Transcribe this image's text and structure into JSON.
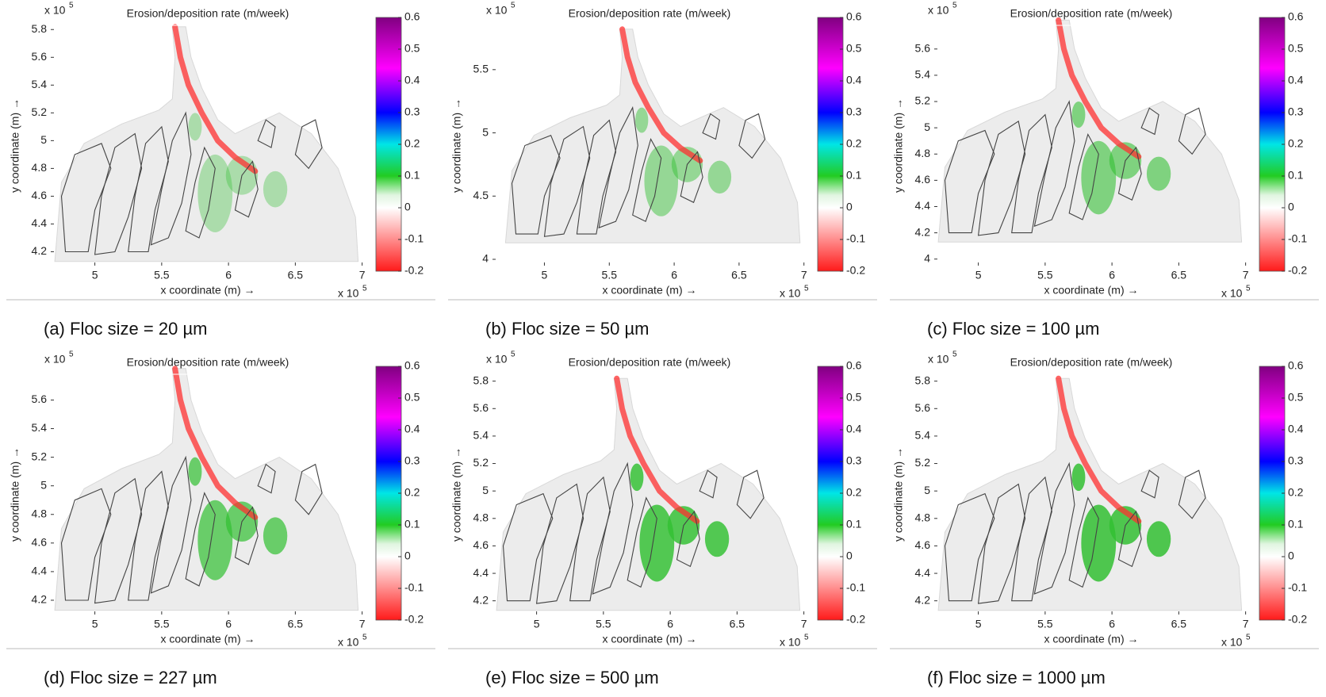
{
  "chart_data": [
    {
      "type": "map",
      "title": "Erosion/deposition rate (m/week)",
      "xlabel": "x coordinate (m) →",
      "ylabel": "y coordinate (m) →",
      "axis_multiplier": "x 10",
      "axis_exponent": "5",
      "xlim": [
        4.67,
        7.02
      ],
      "ylim": [
        4.1,
        5.83
      ],
      "xticks": [
        5,
        5.5,
        6,
        6.5,
        7
      ],
      "yticks": [
        4.2,
        4.4,
        4.6,
        4.8,
        5,
        5.2,
        5.4,
        5.6,
        5.8
      ],
      "colorbar": {
        "lim": [
          -0.2,
          0.6
        ],
        "ticks": [
          -0.2,
          -0.1,
          0,
          0.1,
          0.2,
          0.3,
          0.4,
          0.5,
          0.6
        ]
      },
      "caption": "(a)  Floc size = 20 µm"
    },
    {
      "type": "map",
      "title": "Erosion/deposition rate (m/week)",
      "xlabel": "x coordinate (m) →",
      "ylabel": "y coordinate (m) →",
      "axis_multiplier": "x 10",
      "axis_exponent": "5",
      "xlim": [
        4.6,
        7.02
      ],
      "ylim": [
        3.95,
        5.85
      ],
      "xticks": [
        5,
        5.5,
        6,
        6.5,
        7
      ],
      "yticks": [
        4,
        4.5,
        5,
        5.5
      ],
      "colorbar": {
        "lim": [
          -0.2,
          0.6
        ],
        "ticks": [
          -0.2,
          -0.1,
          0,
          0.1,
          0.2,
          0.3,
          0.4,
          0.5,
          0.6
        ]
      },
      "caption": "(b)  Floc size = 50 µm"
    },
    {
      "type": "map",
      "title": "Erosion/deposition rate (m/week)",
      "xlabel": "x coordinate (m) →",
      "ylabel": "y coordinate (m) →",
      "axis_multiplier": "x 10",
      "axis_exponent": "5",
      "xlim": [
        4.67,
        7.02
      ],
      "ylim": [
        3.95,
        5.78
      ],
      "xticks": [
        5,
        5.5,
        6,
        6.5,
        7
      ],
      "yticks": [
        4,
        4.2,
        4.4,
        4.6,
        4.8,
        5,
        5.2,
        5.4,
        5.6
      ],
      "colorbar": {
        "lim": [
          -0.2,
          0.6
        ],
        "ticks": [
          -0.2,
          -0.1,
          0,
          0.1,
          0.2,
          0.3,
          0.4,
          0.5,
          0.6
        ]
      },
      "caption": "(c)  Floc size = 100 µm"
    },
    {
      "type": "map",
      "title": "Erosion/deposition rate (m/week)",
      "xlabel": "x coordinate (m) →",
      "ylabel": "y coordinate (m) →",
      "axis_multiplier": "x 10",
      "axis_exponent": "5",
      "xlim": [
        4.67,
        7.02
      ],
      "ylim": [
        4.1,
        5.78
      ],
      "xticks": [
        5,
        5.5,
        6,
        6.5,
        7
      ],
      "yticks": [
        4.2,
        4.4,
        4.6,
        4.8,
        5,
        5.2,
        5.4,
        5.6
      ],
      "colorbar": {
        "lim": [
          -0.2,
          0.6
        ],
        "ticks": [
          -0.2,
          -0.1,
          0,
          0.1,
          0.2,
          0.3,
          0.4,
          0.5,
          0.6
        ]
      },
      "caption": "(d)  Floc size = 227 µm"
    },
    {
      "type": "map",
      "title": "Erosion/deposition rate (m/week)",
      "xlabel": "x coordinate (m) →",
      "ylabel": "y coordinate (m) →",
      "axis_multiplier": "x 10",
      "axis_exponent": "5",
      "xlim": [
        4.67,
        7.02
      ],
      "ylim": [
        4.1,
        5.85
      ],
      "xticks": [
        5,
        5.5,
        6,
        6.5,
        7
      ],
      "yticks": [
        4.2,
        4.4,
        4.6,
        4.8,
        5,
        5.2,
        5.4,
        5.6,
        5.8
      ],
      "colorbar": {
        "lim": [
          -0.2,
          0.6
        ],
        "ticks": [
          -0.2,
          -0.1,
          0,
          0.1,
          0.2,
          0.3,
          0.4,
          0.5,
          0.6
        ]
      },
      "caption": "(e)  Floc size = 500 µm"
    },
    {
      "type": "map",
      "title": "Erosion/deposition rate (m/week)",
      "xlabel": "x coordinate (m) →",
      "ylabel": "y coordinate (m) →",
      "axis_multiplier": "x 10",
      "axis_exponent": "5",
      "xlim": [
        4.67,
        7.02
      ],
      "ylim": [
        4.1,
        5.85
      ],
      "xticks": [
        5,
        5.5,
        6,
        6.5,
        7
      ],
      "yticks": [
        4.2,
        4.4,
        4.6,
        4.8,
        5,
        5.2,
        5.4,
        5.6,
        5.8
      ],
      "colorbar": {
        "lim": [
          -0.2,
          0.6
        ],
        "ticks": [
          -0.2,
          -0.1,
          0,
          0.1,
          0.2,
          0.3,
          0.4,
          0.5,
          0.6
        ]
      },
      "caption": "(f)  Floc size = 1000 µm"
    }
  ]
}
